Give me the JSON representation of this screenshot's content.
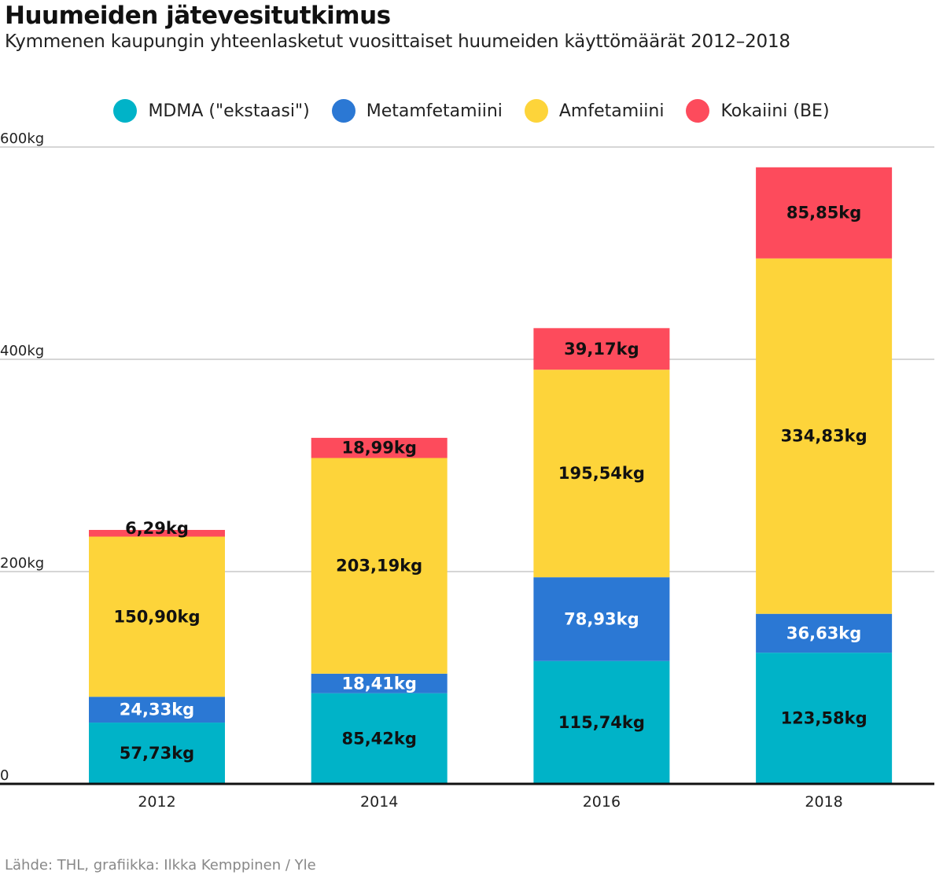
{
  "title": "Huumeiden jätevesitutkimus",
  "subtitle": "Kymmenen kaupungin yhteenlasketut vuosittaiset huumeiden käyttömäärät 2012–2018",
  "source": "Lähde: THL, grafiikka: Ilkka Kemppinen / Yle",
  "chart_data": {
    "type": "bar",
    "stacked": true,
    "title": "Huumeiden jätevesitutkimus",
    "xlabel": "",
    "ylabel": "",
    "ylim": [
      0,
      600
    ],
    "y_ticks": [
      0,
      200,
      400,
      600
    ],
    "y_tick_labels": [
      "0",
      "200kg",
      "400kg",
      "600kg"
    ],
    "categories": [
      "2012",
      "2014",
      "2016",
      "2018"
    ],
    "legend_position": "top-center",
    "grid": true,
    "series": [
      {
        "name": "MDMA (\"ekstaasi\")",
        "color": "#00b3c8",
        "label_color": "#111111",
        "values": [
          57.73,
          85.42,
          115.74,
          123.58
        ],
        "labels": [
          "57,73kg",
          "85,42kg",
          "115,74kg",
          "123,58kg"
        ]
      },
      {
        "name": "Metamfetamiini",
        "color": "#2b78d4",
        "label_color": "#ffffff",
        "values": [
          24.33,
          18.41,
          78.93,
          36.63
        ],
        "labels": [
          "24,33kg",
          "18,41kg",
          "78,93kg",
          "36,63kg"
        ]
      },
      {
        "name": "Amfetamiini",
        "color": "#fdd43a",
        "label_color": "#111111",
        "values": [
          150.9,
          203.19,
          195.54,
          334.83
        ],
        "labels": [
          "150,90kg",
          "203,19kg",
          "195,54kg",
          "334,83kg"
        ]
      },
      {
        "name": "Kokaiini (BE)",
        "color": "#fd4b5c",
        "label_color": "#111111",
        "values": [
          6.29,
          18.99,
          39.17,
          85.85
        ],
        "labels": [
          "6,29kg",
          "18,99kg",
          "39,17kg",
          "85,85kg"
        ]
      }
    ]
  }
}
